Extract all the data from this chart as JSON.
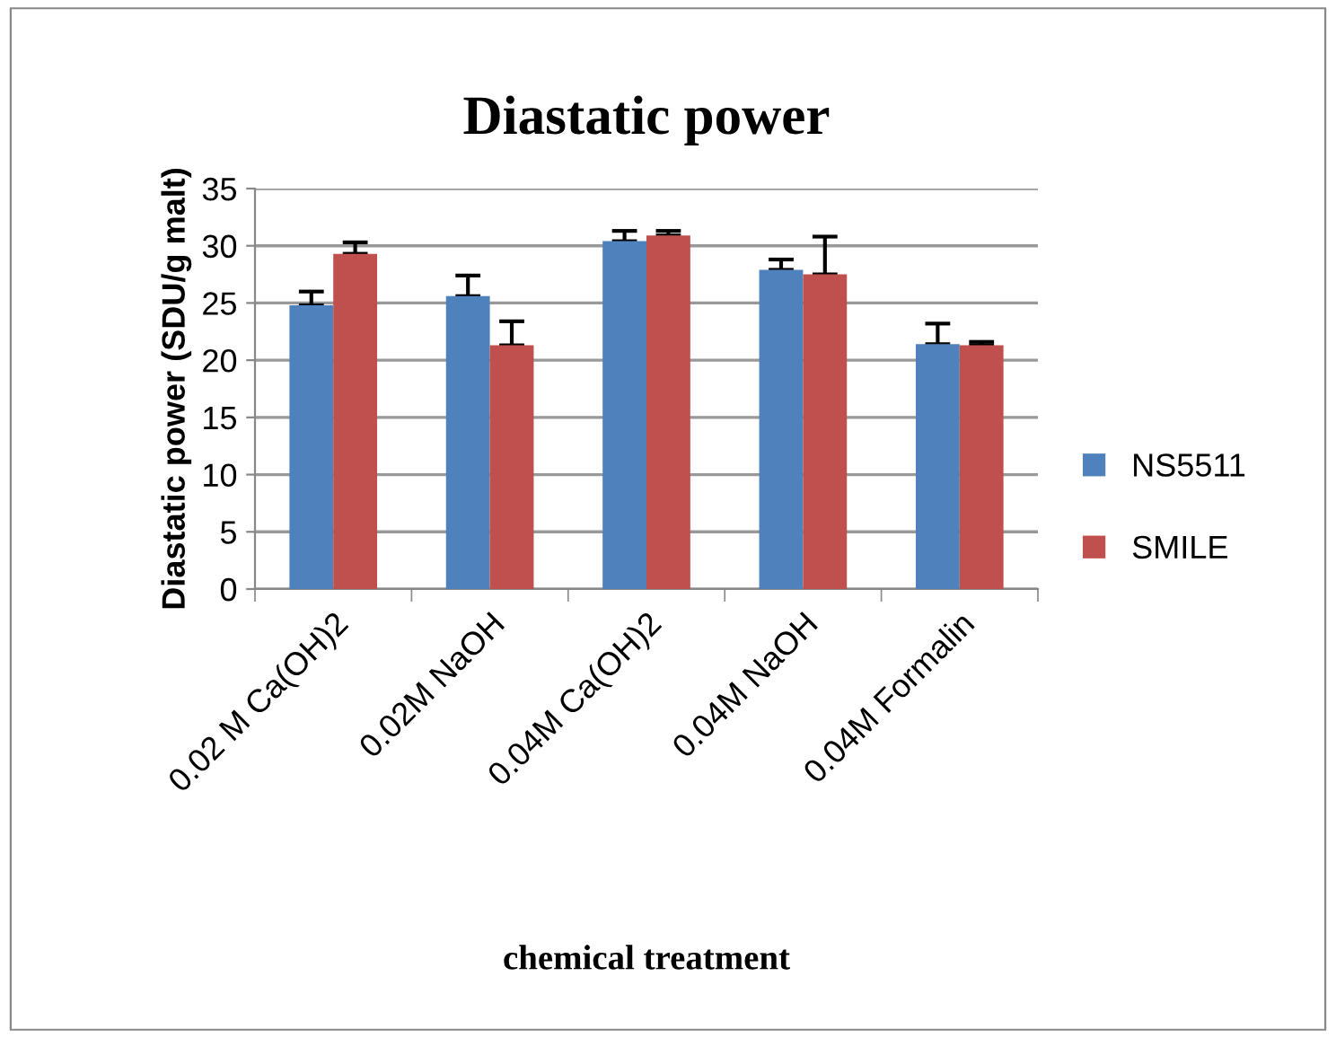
{
  "chart_data": {
    "type": "bar",
    "title": "Diastatic power",
    "xlabel": "chemical treatment",
    "ylabel": "Diastatic power (SDU/g malt)",
    "categories": [
      "0.02 M Ca(OH)2",
      "0.02M NaOH",
      "0.04M Ca(OH)2",
      "0.04M NaOH",
      "0.04M Formalin"
    ],
    "series": [
      {
        "name": "NS5511",
        "color": "#4f81bd",
        "values": [
          24.8,
          25.6,
          30.4,
          27.9,
          21.4
        ],
        "errors": [
          [
            24.8,
            26.0
          ],
          [
            25.6,
            27.4
          ],
          [
            30.4,
            31.3
          ],
          [
            27.9,
            28.8
          ],
          [
            21.4,
            23.2
          ]
        ]
      },
      {
        "name": "SMILE",
        "color": "#c0504d",
        "values": [
          29.3,
          21.3,
          30.9,
          27.5,
          21.3
        ],
        "errors": [
          [
            29.3,
            30.3
          ],
          [
            21.3,
            23.4
          ],
          [
            30.9,
            31.3
          ],
          [
            27.5,
            30.8
          ],
          [
            21.3,
            21.6
          ]
        ]
      }
    ],
    "ylim": [
      0,
      35
    ],
    "yticks": [
      0,
      5,
      10,
      15,
      20,
      25,
      30,
      35
    ],
    "grid": "y",
    "legend": "right"
  }
}
